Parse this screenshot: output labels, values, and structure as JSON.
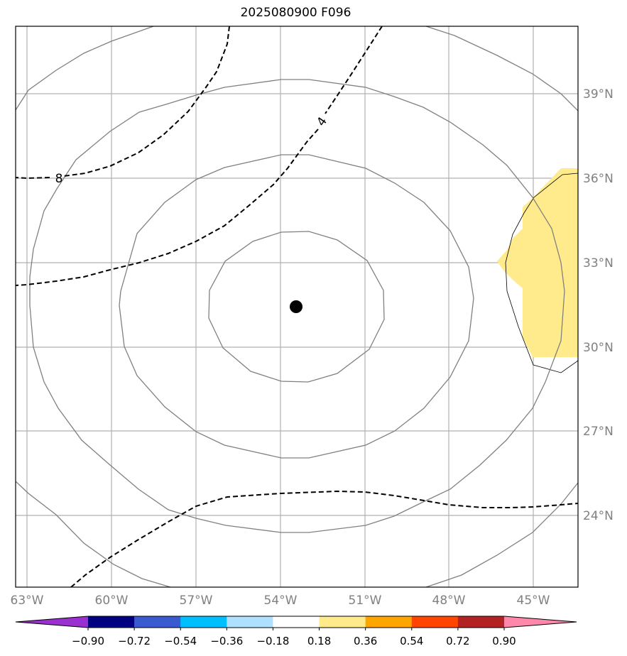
{
  "title": "2025080900 F096",
  "map": {
    "lon_labels": [
      "63°W",
      "60°W",
      "57°W",
      "54°W",
      "51°W",
      "48°W",
      "45°W"
    ],
    "lat_labels": [
      "39°N",
      "36°N",
      "33°N",
      "30°N",
      "27°N",
      "24°N"
    ],
    "grid_color": "#b0b0b0",
    "contour_color": "#808080",
    "shaded_region_color": "#ffea8c",
    "center_marker": "filled-black-circle",
    "dashed_contour_labels": [
      "8",
      "4"
    ]
  },
  "colorbar": {
    "colors": [
      "#9b30d0",
      "#000080",
      "#3a5bd0",
      "#00bfff",
      "#b0e0ff",
      "#ffffff",
      "#ffea8c",
      "#ffa500",
      "#ff4500",
      "#b22222",
      "#ff88aa"
    ],
    "tick_labels": [
      "−0.90",
      "−0.72",
      "−0.54",
      "−0.36",
      "−0.18",
      "0.18",
      "0.36",
      "0.54",
      "0.72",
      "0.90"
    ]
  }
}
